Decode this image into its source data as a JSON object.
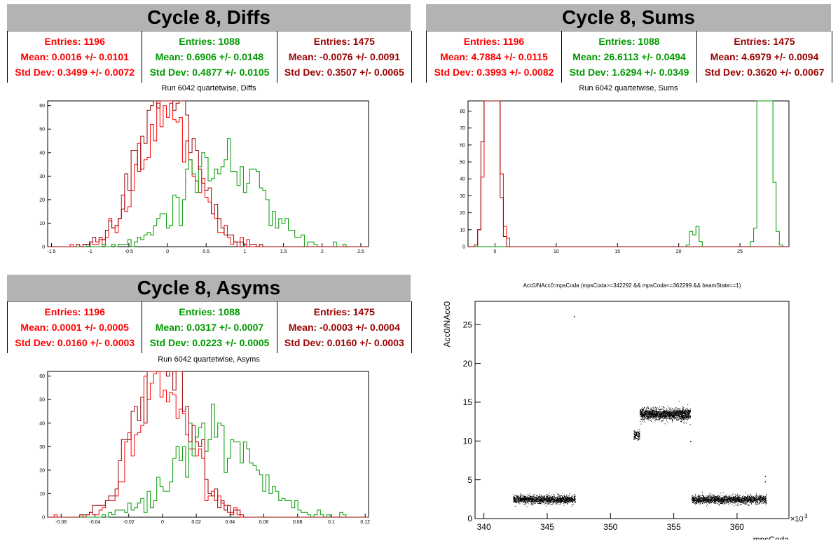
{
  "colors": {
    "red": "#ff0000",
    "green": "#009900",
    "darkred": "#990000",
    "black": "#000000"
  },
  "panels": [
    {
      "id": "diffs",
      "banner": "Cycle 8, Diffs",
      "stats": [
        {
          "color": "red",
          "entries": "Entries: 1196",
          "mean": "Mean: 0.0016 +/- 0.0101",
          "std": "Std Dev: 0.3499 +/- 0.0072"
        },
        {
          "color": "green",
          "entries": "Entries: 1088",
          "mean": "Mean: 0.6906 +/- 0.0148",
          "std": "Std Dev: 0.4877 +/- 0.0105"
        },
        {
          "color": "darkred",
          "entries": "Entries: 1475",
          "mean": "Mean: -0.0076 +/- 0.0091",
          "std": "Std Dev: 0.3507 +/- 0.0065"
        }
      ],
      "subtitle": "Run 6042 quartetwise, Diffs"
    },
    {
      "id": "sums",
      "banner": "Cycle 8, Sums",
      "stats": [
        {
          "color": "red",
          "entries": "Entries: 1196",
          "mean": "Mean: 4.7884 +/- 0.0115",
          "std": "Std Dev: 0.3993 +/- 0.0082"
        },
        {
          "color": "green",
          "entries": "Entries: 1088",
          "mean": "Mean: 26.6113 +/- 0.0494",
          "std": "Std Dev: 1.6294 +/- 0.0349"
        },
        {
          "color": "darkred",
          "entries": "Entries: 1475",
          "mean": "Mean: 4.6979 +/- 0.0094",
          "std": "Std Dev: 0.3620 +/- 0.0067"
        }
      ],
      "subtitle": "Run 6042 quartetwise, Sums"
    },
    {
      "id": "asyms",
      "banner": "Cycle 8, Asyms",
      "stats": [
        {
          "color": "red",
          "entries": "Entries: 1196",
          "mean": "Mean: 0.0001 +/- 0.0005",
          "std": "Std Dev: 0.0160 +/- 0.0003"
        },
        {
          "color": "green",
          "entries": "Entries: 1088",
          "mean": "Mean: 0.0317 +/- 0.0007",
          "std": "Std Dev: 0.0223 +/- 0.0005"
        },
        {
          "color": "darkred",
          "entries": "Entries: 1475",
          "mean": "Mean: -0.0003 +/- 0.0004",
          "std": "Std Dev: 0.0160 +/- 0.0003"
        }
      ],
      "subtitle": "Run 6042 quartetwise, Asyms"
    }
  ],
  "chart_data": [
    {
      "type": "histogram",
      "xlim": [
        -1.55,
        2.6
      ],
      "ylim": [
        0,
        62
      ],
      "xticks": [
        -1.5,
        -1,
        -0.5,
        0,
        0.5,
        1,
        1.5,
        2,
        2.5
      ],
      "xtick_labels": [
        "-1.5",
        "-1",
        "-0.5",
        "0",
        "0.5",
        "1",
        "1.5",
        "2",
        "2.5"
      ],
      "yticks": [
        0,
        10,
        20,
        30,
        40,
        50,
        60
      ],
      "ytick_labels": [
        "0",
        "10",
        "20",
        "30",
        "40",
        "50",
        "60"
      ],
      "series": [
        {
          "color": "red",
          "mean": 0.0016,
          "std": 0.3499,
          "entries": 1196
        },
        {
          "color": "green",
          "mean": 0.6906,
          "std": 0.4877,
          "entries": 1088
        },
        {
          "color": "darkred",
          "mean": -0.0076,
          "std": 0.3507,
          "entries": 1475
        }
      ]
    },
    {
      "type": "histogram",
      "xlim": [
        2.8,
        29.0
      ],
      "ylim": [
        0,
        86
      ],
      "xticks": [
        5,
        10,
        15,
        20,
        25
      ],
      "xtick_labels": [
        "5",
        "10",
        "15",
        "20",
        "25"
      ],
      "yticks": [
        0,
        10,
        20,
        30,
        40,
        50,
        60,
        70,
        80
      ],
      "ytick_labels": [
        "0",
        "10",
        "20",
        "30",
        "40",
        "50",
        "60",
        "70",
        "80"
      ],
      "series": [
        {
          "color": "red",
          "mean": 4.7884,
          "std": 0.3993,
          "entries": 1196
        },
        {
          "color": "green",
          "mean": 26.6113,
          "std": 1.6294,
          "entries": 1088
        },
        {
          "color": "darkred",
          "mean": 4.6979,
          "std": 0.362,
          "entries": 1475
        }
      ]
    },
    {
      "type": "histogram",
      "xlim": [
        -0.068,
        0.122
      ],
      "ylim": [
        0,
        62
      ],
      "xticks": [
        -0.06,
        -0.04,
        -0.02,
        0,
        0.02,
        0.04,
        0.06,
        0.08,
        0.1,
        0.12
      ],
      "xtick_labels": [
        "-0.06",
        "-0.04",
        "-0.02",
        "0",
        "0.02",
        "0.04",
        "0.06",
        "0.08",
        "0.1",
        "0.12"
      ],
      "yticks": [
        0,
        10,
        20,
        30,
        40,
        50,
        60
      ],
      "ytick_labels": [
        "0",
        "10",
        "20",
        "30",
        "40",
        "50",
        "60"
      ],
      "series": [
        {
          "color": "red",
          "mean": 0.0001,
          "std": 0.016,
          "entries": 1196
        },
        {
          "color": "green",
          "mean": 0.0317,
          "std": 0.0223,
          "entries": 1088
        },
        {
          "color": "darkred",
          "mean": -0.0003,
          "std": 0.016,
          "entries": 1475
        }
      ]
    },
    {
      "type": "scatter",
      "title": "Acc0/NAcc0:mpsCoda (mpsCoda>=342292 && mpsCoda<=362299 && beamState==1)",
      "xlabel": "mpsCoda",
      "ylabel": "Acc0/NAcc0",
      "x_multiplier": "×10",
      "x_multiplier_exp": "3",
      "xlim": [
        339.3,
        364.1
      ],
      "ylim": [
        0,
        28
      ],
      "xticks": [
        340,
        345,
        350,
        355,
        360
      ],
      "xtick_labels": [
        "340",
        "345",
        "350",
        "355",
        "360"
      ],
      "yticks": [
        0,
        5,
        10,
        15,
        20,
        25
      ],
      "ytick_labels": [
        "0",
        "5",
        "10",
        "15",
        "20",
        "25"
      ],
      "clusters": [
        {
          "x": [
            342.3,
            347.2
          ],
          "y": 2.5,
          "spread": 0.45,
          "n": 1400
        },
        {
          "x": [
            351.8,
            352.3
          ],
          "y": 10.8,
          "spread": 0.5,
          "n": 120
        },
        {
          "x": [
            352.3,
            356.3
          ],
          "y": 13.5,
          "spread": 0.6,
          "n": 1500
        },
        {
          "x": [
            356.4,
            362.3
          ],
          "y": 2.5,
          "spread": 0.45,
          "n": 1600
        }
      ],
      "outliers": [
        {
          "x": 347.1,
          "y": 26.1
        },
        {
          "x": 356.3,
          "y": 10.0
        },
        {
          "x": 362.2,
          "y": 5.5
        },
        {
          "x": 362.2,
          "y": 4.8
        }
      ]
    }
  ]
}
